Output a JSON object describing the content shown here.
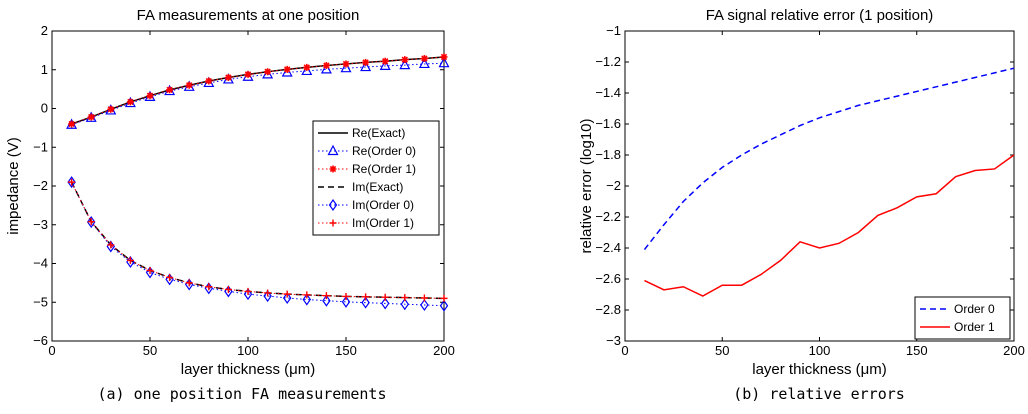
{
  "captions": {
    "a": "(a) one position FA measurements",
    "b": "(b) relative errors"
  },
  "chart_data": [
    {
      "type": "line",
      "title": "FA measurements at one position",
      "xlabel": "layer thickness (μm)",
      "ylabel": "impedance (V)",
      "xlim": [
        0,
        200
      ],
      "ylim": [
        -6,
        2
      ],
      "xticks": [
        "0",
        "50",
        "100",
        "150",
        "200"
      ],
      "yticks": [
        "−6",
        "−5",
        "−4",
        "−3",
        "−2",
        "−1",
        "0",
        "1",
        "2"
      ],
      "grid": false,
      "legend_position": "right",
      "x": [
        10,
        20,
        30,
        40,
        50,
        60,
        70,
        80,
        90,
        100,
        110,
        120,
        130,
        140,
        150,
        160,
        170,
        180,
        190,
        200
      ],
      "series": [
        {
          "name": "Re(Exact)",
          "color": "#000000",
          "style": "solid",
          "marker": "none",
          "values": [
            -0.4,
            -0.22,
            -0.02,
            0.17,
            0.33,
            0.48,
            0.6,
            0.71,
            0.8,
            0.88,
            0.95,
            1.01,
            1.06,
            1.11,
            1.15,
            1.19,
            1.22,
            1.26,
            1.29,
            1.33
          ]
        },
        {
          "name": "Re(Order 0)",
          "color": "#0000ff",
          "style": "dotted",
          "marker": "triangle",
          "values": [
            -0.42,
            -0.24,
            -0.05,
            0.14,
            0.3,
            0.45,
            0.56,
            0.66,
            0.75,
            0.82,
            0.88,
            0.93,
            0.97,
            1.01,
            1.04,
            1.07,
            1.1,
            1.12,
            1.15,
            1.17
          ]
        },
        {
          "name": "Re(Order 1)",
          "color": "#ff0000",
          "style": "dotted",
          "marker": "asterisk",
          "values": [
            -0.4,
            -0.22,
            -0.02,
            0.17,
            0.33,
            0.48,
            0.6,
            0.71,
            0.8,
            0.88,
            0.95,
            1.01,
            1.06,
            1.11,
            1.15,
            1.19,
            1.22,
            1.26,
            1.29,
            1.33
          ]
        },
        {
          "name": "Im(Exact)",
          "color": "#000000",
          "style": "dashed",
          "marker": "none",
          "values": [
            -1.9,
            -2.92,
            -3.52,
            -3.92,
            -4.18,
            -4.36,
            -4.5,
            -4.6,
            -4.67,
            -4.72,
            -4.76,
            -4.79,
            -4.81,
            -4.83,
            -4.85,
            -4.86,
            -4.87,
            -4.88,
            -4.89,
            -4.9
          ]
        },
        {
          "name": "Im(Order 0)",
          "color": "#0000ff",
          "style": "dotted",
          "marker": "diamond",
          "values": [
            -1.9,
            -2.93,
            -3.56,
            -3.96,
            -4.23,
            -4.41,
            -4.54,
            -4.64,
            -4.72,
            -4.79,
            -4.84,
            -4.89,
            -4.93,
            -4.96,
            -4.99,
            -5.01,
            -5.03,
            -5.05,
            -5.07,
            -5.09
          ]
        },
        {
          "name": "Im(Order 1)",
          "color": "#ff0000",
          "style": "dotted",
          "marker": "plus",
          "values": [
            -1.9,
            -2.92,
            -3.52,
            -3.92,
            -4.18,
            -4.36,
            -4.5,
            -4.6,
            -4.67,
            -4.72,
            -4.76,
            -4.79,
            -4.81,
            -4.83,
            -4.85,
            -4.86,
            -4.87,
            -4.88,
            -4.89,
            -4.9
          ]
        }
      ]
    },
    {
      "type": "line",
      "title": "FA signal relative error (1 position)",
      "xlabel": "layer thickness (μm)",
      "ylabel": "relative error (log10)",
      "xlim": [
        0,
        200
      ],
      "ylim": [
        -3,
        -1
      ],
      "xticks": [
        "0",
        "50",
        "100",
        "150",
        "200"
      ],
      "yticks": [
        "−3",
        "−2.8",
        "−2.6",
        "−2.4",
        "−2.2",
        "−2",
        "−1.8",
        "−1.6",
        "−1.4",
        "−1.2",
        "−1"
      ],
      "grid": false,
      "legend_position": "bottom-right",
      "x": [
        10,
        20,
        30,
        40,
        50,
        60,
        70,
        80,
        90,
        100,
        110,
        120,
        130,
        140,
        150,
        160,
        170,
        180,
        190,
        200
      ],
      "series": [
        {
          "name": "Order 0",
          "color": "#0000ff",
          "style": "dashed",
          "marker": "none",
          "values": [
            -2.41,
            -2.25,
            -2.1,
            -1.98,
            -1.88,
            -1.8,
            -1.73,
            -1.67,
            -1.61,
            -1.56,
            -1.52,
            -1.48,
            -1.45,
            -1.42,
            -1.39,
            -1.36,
            -1.33,
            -1.3,
            -1.27,
            -1.24
          ]
        },
        {
          "name": "Order 1",
          "color": "#ff0000",
          "style": "solid",
          "marker": "none",
          "values": [
            -2.61,
            -2.67,
            -2.65,
            -2.71,
            -2.64,
            -2.64,
            -2.57,
            -2.48,
            -2.36,
            -2.4,
            -2.37,
            -2.3,
            -2.19,
            -2.14,
            -2.07,
            -2.05,
            -1.94,
            -1.9,
            -1.89,
            -1.8
          ]
        }
      ]
    }
  ]
}
